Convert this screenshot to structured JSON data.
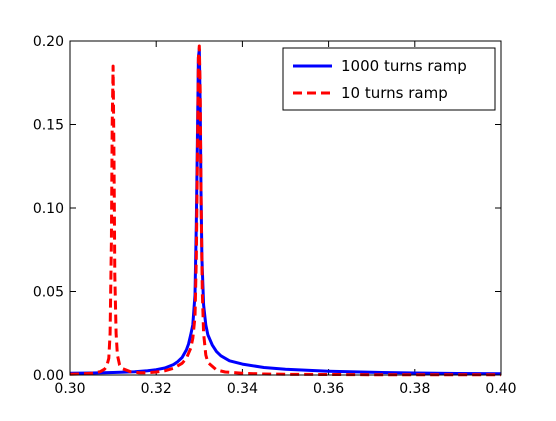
{
  "chart_data": {
    "type": "line",
    "title": "",
    "xlabel": "",
    "ylabel": "",
    "xlim": [
      0.3,
      0.4
    ],
    "ylim": [
      0.0,
      0.2
    ],
    "grid": false,
    "legend_position": "top-right",
    "x_ticks": [
      "0.30",
      "0.32",
      "0.34",
      "0.36",
      "0.38",
      "0.40"
    ],
    "x_tick_values": [
      0.3,
      0.32,
      0.34,
      0.36,
      0.38,
      0.4
    ],
    "y_ticks": [
      "0.00",
      "0.05",
      "0.10",
      "0.15",
      "0.20"
    ],
    "y_tick_values": [
      0.0,
      0.05,
      0.1,
      0.15,
      0.2
    ],
    "series": [
      {
        "name": "1000 turns ramp",
        "color": "#0000ff",
        "style": "solid",
        "x": [
          0.3,
          0.305,
          0.31,
          0.315,
          0.318,
          0.32,
          0.322,
          0.324,
          0.325,
          0.326,
          0.327,
          0.3275,
          0.328,
          0.3285,
          0.329,
          0.3293,
          0.3296,
          0.3298,
          0.33,
          0.3302,
          0.3304,
          0.3306,
          0.331,
          0.3315,
          0.332,
          0.333,
          0.334,
          0.335,
          0.337,
          0.34,
          0.345,
          0.35,
          0.36,
          0.37,
          0.38,
          0.39,
          0.4
        ],
        "y": [
          0.001,
          0.0012,
          0.0015,
          0.002,
          0.0026,
          0.0032,
          0.0042,
          0.0062,
          0.008,
          0.0105,
          0.015,
          0.0185,
          0.024,
          0.03,
          0.048,
          0.09,
          0.15,
          0.19,
          0.195,
          0.16,
          0.11,
          0.07,
          0.042,
          0.03,
          0.024,
          0.018,
          0.014,
          0.0115,
          0.0085,
          0.0065,
          0.0045,
          0.0035,
          0.0023,
          0.0016,
          0.0012,
          0.0009,
          0.0007
        ]
      },
      {
        "name": "10 turns ramp",
        "color": "#ff0000",
        "style": "dashed",
        "x": [
          0.3,
          0.303,
          0.305,
          0.307,
          0.308,
          0.3085,
          0.309,
          0.3093,
          0.3096,
          0.3098,
          0.31,
          0.3102,
          0.3104,
          0.3107,
          0.311,
          0.3115,
          0.312,
          0.314,
          0.316,
          0.318,
          0.32,
          0.322,
          0.324,
          0.326,
          0.327,
          0.328,
          0.3285,
          0.329,
          0.3293,
          0.3296,
          0.3298,
          0.33,
          0.3302,
          0.3304,
          0.3307,
          0.331,
          0.3315,
          0.332,
          0.334,
          0.336,
          0.34,
          0.345,
          0.35,
          0.36,
          0.37,
          0.38,
          0.39,
          0.4
        ],
        "y": [
          0.0004,
          0.0007,
          0.0011,
          0.002,
          0.0035,
          0.005,
          0.01,
          0.025,
          0.08,
          0.15,
          0.185,
          0.13,
          0.06,
          0.025,
          0.012,
          0.006,
          0.004,
          0.002,
          0.0014,
          0.0014,
          0.0018,
          0.0025,
          0.004,
          0.007,
          0.01,
          0.016,
          0.022,
          0.035,
          0.07,
          0.14,
          0.19,
          0.197,
          0.17,
          0.11,
          0.05,
          0.025,
          0.012,
          0.0075,
          0.003,
          0.0018,
          0.001,
          0.0006,
          0.0004,
          0.0003,
          0.0002,
          0.0002,
          0.0001,
          0.0001
        ]
      }
    ]
  }
}
